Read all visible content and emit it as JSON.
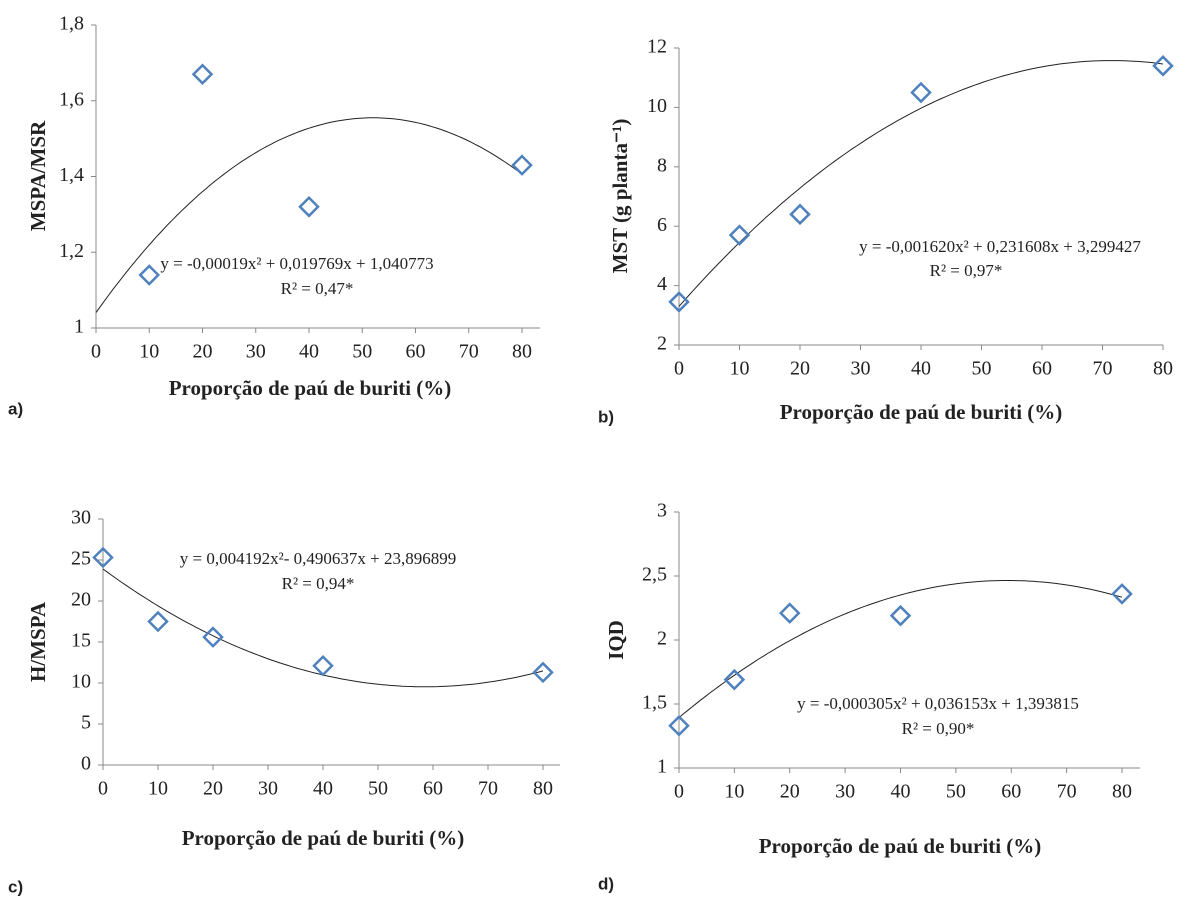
{
  "chart_data": [
    {
      "type": "scatter",
      "panel": "a)",
      "ylabel": "MSPA/MSR",
      "xlabel": "Proporção de paú de buriti  (%)",
      "equation": "y = -0,00019x² + 0,019769x + 1,040773",
      "r2": "R² = 0,47*",
      "x": [
        10,
        20,
        40,
        80
      ],
      "values": [
        1.14,
        1.67,
        1.32,
        1.43
      ],
      "color": "#4f81bd",
      "xlim": [
        0,
        80
      ],
      "xticks": [
        0,
        10,
        20,
        30,
        40,
        50,
        60,
        70,
        80
      ],
      "ylim": [
        1,
        1.8
      ],
      "yticks": [
        1,
        {
          "value": 1.2,
          "label": "1,2"
        },
        {
          "value": 1.4,
          "label": "1,4"
        },
        {
          "value": 1.6,
          "label": "1,6"
        },
        {
          "value": 1.8,
          "label": "1,8"
        }
      ]
    },
    {
      "type": "scatter",
      "panel": "b)",
      "ylabel": "MST (g planta⁻¹)",
      "xlabel": "Proporção de paú de buriti  (%)",
      "equation": "y = -0,001620x² + 0,231608x + 3,299427",
      "r2": "R² = 0,97*",
      "x": [
        0,
        10,
        20,
        40,
        80
      ],
      "values": [
        3.45,
        5.7,
        6.4,
        10.5,
        11.4
      ],
      "color": "#4f81bd",
      "xlim": [
        0,
        80
      ],
      "xticks": [
        0,
        10,
        20,
        30,
        40,
        50,
        60,
        70,
        80
      ],
      "ylim": [
        2,
        12
      ],
      "yticks": [
        2,
        4,
        6,
        8,
        10,
        12
      ]
    },
    {
      "type": "scatter",
      "panel": "c)",
      "ylabel": "H/MSPA",
      "xlabel": "Proporção de paú de buriti  (%)",
      "equation": "y = 0,004192x²- 0,490637x + 23,896899",
      "r2": "R² = 0,94*",
      "x": [
        0,
        10,
        20,
        40,
        80
      ],
      "values": [
        25.3,
        17.5,
        15.6,
        12.1,
        11.3
      ],
      "color": "#4f81bd",
      "xlim": [
        0,
        80
      ],
      "xticks": [
        0,
        10,
        20,
        30,
        40,
        50,
        60,
        70,
        80
      ],
      "ylim": [
        0,
        30
      ],
      "yticks": [
        0,
        5,
        10,
        15,
        20,
        25,
        30
      ]
    },
    {
      "type": "scatter",
      "panel": "d)",
      "ylabel": "IQD",
      "xlabel": "Proporção de paú de buriti  (%)",
      "equation": "y = -0,000305x² + 0,036153x + 1,393815",
      "r2": "R² = 0,90*",
      "x": [
        0,
        10,
        20,
        40,
        80
      ],
      "values": [
        1.33,
        1.69,
        2.21,
        2.19,
        2.36
      ],
      "color": "#4f81bd",
      "xlim": [
        0,
        80
      ],
      "xticks": [
        0,
        10,
        20,
        30,
        40,
        50,
        60,
        70,
        80
      ],
      "ylim": [
        1,
        3
      ],
      "yticks": [
        1,
        {
          "value": 1.5,
          "label": "1,5"
        },
        2,
        {
          "value": 2.5,
          "label": "2,5"
        },
        3
      ]
    }
  ]
}
